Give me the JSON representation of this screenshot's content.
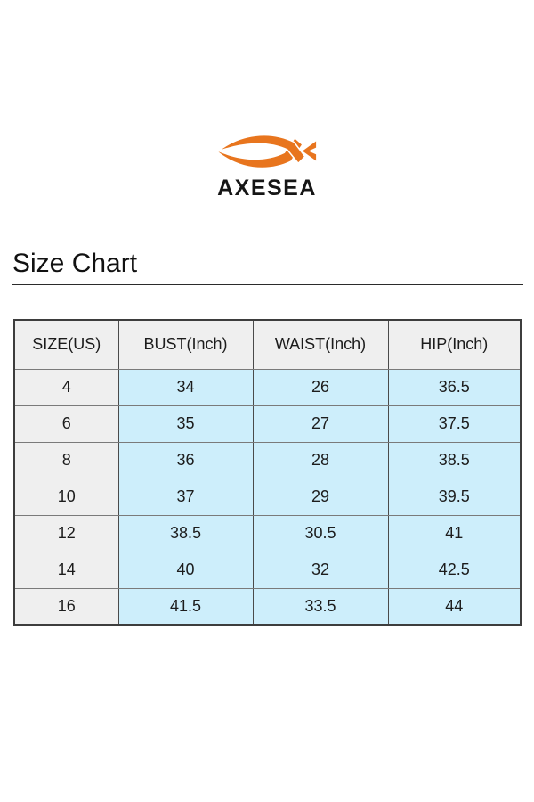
{
  "brand": {
    "name": "AXESEA",
    "logo_icon": "fish-swoosh-icon",
    "logo_color": "#E8751E"
  },
  "heading": {
    "title": "Size Chart"
  },
  "chart_data": {
    "type": "table",
    "title": "Size Chart",
    "columns": [
      "SIZE(US)",
      "BUST(Inch)",
      "WAIST(Inch)",
      "HIP(Inch)"
    ],
    "rows": [
      [
        "4",
        "34",
        "26",
        "36.5"
      ],
      [
        "6",
        "35",
        "27",
        "37.5"
      ],
      [
        "8",
        "36",
        "28",
        "38.5"
      ],
      [
        "10",
        "37",
        "29",
        "39.5"
      ],
      [
        "12",
        "38.5",
        "30.5",
        "41"
      ],
      [
        "14",
        "40",
        "32",
        "42.5"
      ],
      [
        "16",
        "41.5",
        "33.5",
        "44"
      ]
    ]
  },
  "colors": {
    "logo_orange": "#E8751E",
    "header_gray": "#EFEFEF",
    "size_column_gray": "#EFEFEF",
    "measure_cell_blue": "#CDEEFB",
    "border_dark": "#3D3D3D",
    "text": "#1A1A1A",
    "background": "#FFFFFF"
  }
}
